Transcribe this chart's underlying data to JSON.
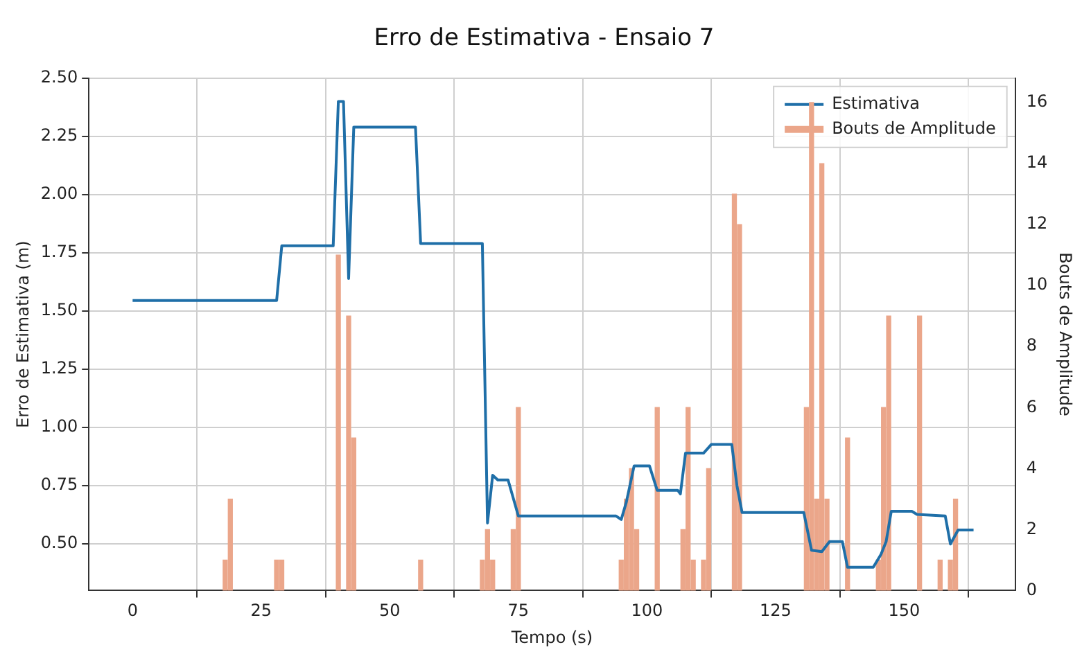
{
  "chart_data": {
    "type": "line",
    "title": "Erro de Estimativa - Ensaio 7",
    "xlabel": "Tempo (s)",
    "ylabel": "Erro de Estimativa (m)",
    "y2label": "Bouts de Amplitude",
    "xlim": [
      -8.5,
      171.6
    ],
    "xticks": [
      0,
      25,
      50,
      75,
      100,
      125,
      150
    ],
    "ylim": [
      0.3,
      2.5
    ],
    "yticks": [
      {
        "value": 0.5,
        "label": "0.50"
      },
      {
        "value": 0.75,
        "label": "0.75"
      },
      {
        "value": 1,
        "label": "1.00"
      },
      {
        "value": 1.25,
        "label": "1.25"
      },
      {
        "value": 1.5,
        "label": "1.50"
      },
      {
        "value": 1.75,
        "label": "1.75"
      },
      {
        "value": 2,
        "label": "2.00"
      },
      {
        "value": 2.25,
        "label": "2.25"
      },
      {
        "value": 2.5,
        "label": "2.50"
      }
    ],
    "y2lim": [
      0,
      16.8
    ],
    "y2ticks": [
      0,
      2,
      4,
      6,
      8,
      10,
      12,
      14,
      16
    ],
    "grid": true,
    "legend": "top right",
    "line_style": "solid",
    "series": [
      {
        "name": "Estimativa",
        "color": "#1f6fa8",
        "x": [
          0,
          28,
          29,
          39,
          40,
          41,
          42,
          43,
          55,
          56,
          68,
          69,
          70,
          71,
          73,
          75,
          94,
          95,
          96,
          97.5,
          100.5,
          102,
          106,
          106.5,
          107.5,
          111,
          112.5,
          116.5,
          117.5,
          118.5,
          130.5,
          132,
          134,
          135.5,
          138,
          139,
          144,
          145.5,
          146.5,
          147.5,
          151.5,
          152.5,
          158,
          159,
          160.5,
          163.5
        ],
        "values": [
          1.545,
          1.545,
          1.78,
          1.78,
          2.4,
          2.4,
          1.64,
          2.29,
          2.29,
          1.79,
          1.79,
          0.59,
          0.795,
          0.775,
          0.775,
          0.62,
          0.62,
          0.605,
          0.68,
          0.835,
          0.835,
          0.73,
          0.73,
          0.715,
          0.89,
          0.89,
          0.927,
          0.927,
          0.75,
          0.635,
          0.635,
          0.473,
          0.467,
          0.51,
          0.51,
          0.4,
          0.4,
          0.455,
          0.51,
          0.64,
          0.64,
          0.627,
          0.62,
          0.5,
          0.56,
          0.56
        ]
      },
      {
        "name": "Bouts de Amplitude",
        "type": "bar",
        "axis": "y2",
        "color": "#eba68a",
        "x": [
          18,
          19,
          28,
          29,
          40,
          42,
          43,
          56,
          68,
          69,
          70,
          74,
          75,
          95,
          96,
          97,
          98,
          102,
          107,
          108,
          109,
          111,
          112,
          117,
          118,
          131,
          132,
          133,
          134,
          135,
          139,
          145,
          146,
          147,
          153,
          157,
          159,
          160
        ],
        "values": [
          1,
          3,
          1,
          1,
          11,
          9,
          5,
          1,
          1,
          2,
          1,
          2,
          6,
          1,
          3,
          4,
          2,
          6,
          2,
          6,
          1,
          1,
          4,
          13,
          12,
          6,
          16,
          3,
          14,
          3,
          5,
          1,
          6,
          9,
          9,
          1,
          1,
          3
        ]
      }
    ]
  }
}
